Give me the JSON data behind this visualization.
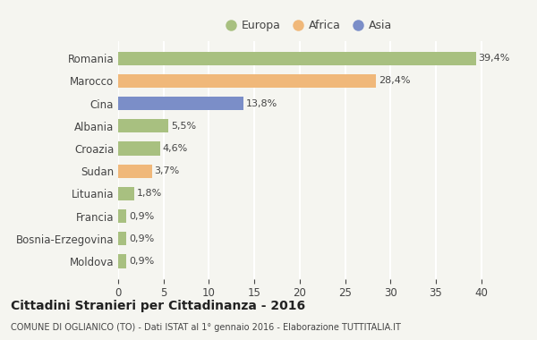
{
  "categories": [
    "Moldova",
    "Bosnia-Erzegovina",
    "Francia",
    "Lituania",
    "Sudan",
    "Croazia",
    "Albania",
    "Cina",
    "Marocco",
    "Romania"
  ],
  "values": [
    0.9,
    0.9,
    0.9,
    1.8,
    3.7,
    4.6,
    5.5,
    13.8,
    28.4,
    39.4
  ],
  "labels": [
    "0,9%",
    "0,9%",
    "0,9%",
    "1,8%",
    "3,7%",
    "4,6%",
    "5,5%",
    "13,8%",
    "28,4%",
    "39,4%"
  ],
  "colors": [
    "#a8c080",
    "#a8c080",
    "#a8c080",
    "#a8c080",
    "#f0b87a",
    "#a8c080",
    "#a8c080",
    "#7b8ec8",
    "#f0b87a",
    "#a8c080"
  ],
  "legend": [
    {
      "label": "Europa",
      "color": "#a8c080"
    },
    {
      "label": "Africa",
      "color": "#f0b87a"
    },
    {
      "label": "Asia",
      "color": "#7b8ec8"
    }
  ],
  "title": "Cittadini Stranieri per Cittadinanza - 2016",
  "subtitle": "COMUNE DI OGLIANICO (TO) - Dati ISTAT al 1° gennaio 2016 - Elaborazione TUTTITALIA.IT",
  "xlim": [
    0,
    42
  ],
  "xticks": [
    0,
    5,
    10,
    15,
    20,
    25,
    30,
    35,
    40
  ],
  "background_color": "#f5f5f0",
  "grid_color": "#ffffff",
  "bar_height": 0.6,
  "text_color": "#444444"
}
